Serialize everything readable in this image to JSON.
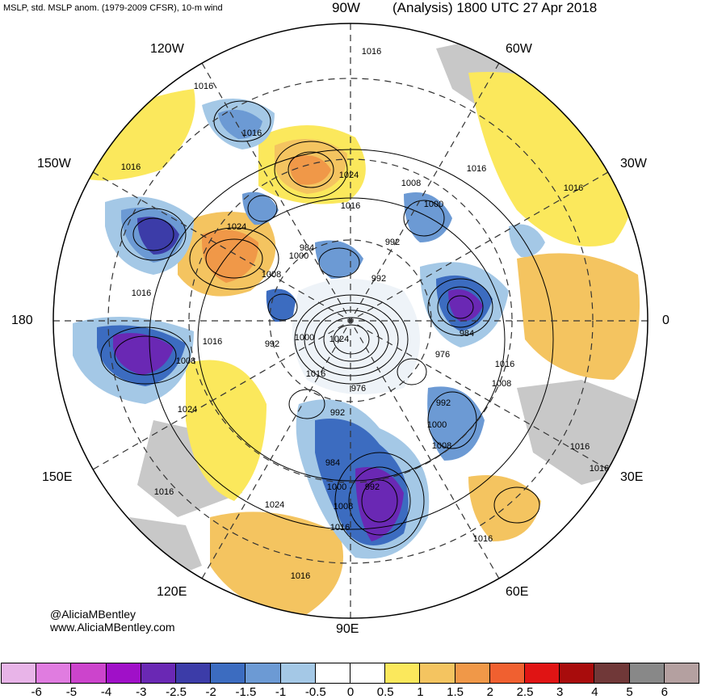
{
  "header": {
    "left_title": "MSLP, std. MSLP anom. (1979-2009 CFSR), 10-m wind",
    "center_title": "90W",
    "right_title": "(Analysis) 1800 UTC 27 Apr 2018"
  },
  "longitude_labels": {
    "w120": "120W",
    "w60": "60W",
    "w150": "150W",
    "w30": "30W",
    "deg180": "180",
    "deg0": "0",
    "e150": "150E",
    "e30": "30E",
    "e120": "120E",
    "e60": "60E",
    "e90": "90E"
  },
  "isobar_labels": [
    "1016",
    "1016",
    "1016",
    "1016",
    "1016",
    "1024",
    "1016",
    "1008",
    "1016",
    "1000",
    "1024",
    "1016",
    "992",
    "984",
    "1000",
    "992",
    "1008",
    "1016",
    "984",
    "976",
    "992",
    "1000",
    "1024",
    "1016",
    "1008",
    "1008",
    "1016",
    "976",
    "1024",
    "992",
    "992",
    "1000",
    "1008",
    "1016",
    "1016",
    "984",
    "1000",
    "992",
    "1008",
    "1016",
    "1016",
    "1016",
    "1024",
    "1016"
  ],
  "credits": {
    "handle": "@AliciaMBentley",
    "website": "www.AliciaMBentley.com"
  },
  "colorbar": {
    "colors": [
      "#e8b4e8",
      "#e07ce0",
      "#cc44cc",
      "#a010c8",
      "#6a28b4",
      "#3c3ca8",
      "#3c6cc0",
      "#6c9ad4",
      "#a4c8e6",
      "#ffffff",
      "#ffffff",
      "#fbe85c",
      "#f4c460",
      "#f09848",
      "#f06030",
      "#e01414",
      "#a80c0c",
      "#703838",
      "#888888",
      "#b4a0a0"
    ],
    "tick_labels": [
      "-6",
      "-5",
      "-4",
      "-3",
      "-2.5",
      "-2",
      "-1.5",
      "-1",
      "-0.5",
      "0",
      "0.5",
      "1",
      "1.5",
      "2",
      "2.5",
      "3",
      "4",
      "5",
      "6"
    ]
  }
}
